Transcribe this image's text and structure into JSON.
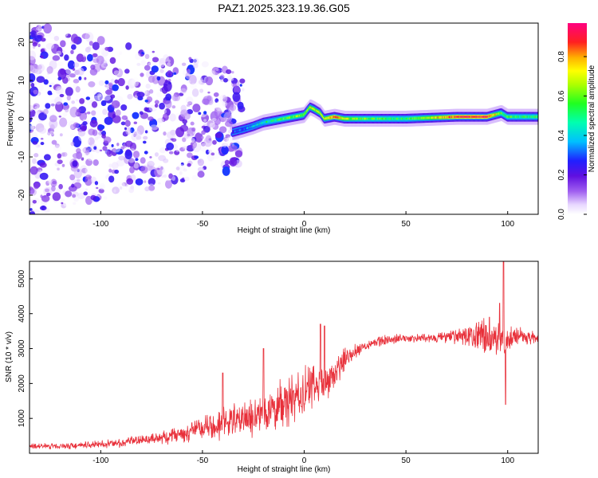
{
  "figure": {
    "title": "PAZ1.2025.323.19.36.G05"
  },
  "colorbar": {
    "label": "Normalized spectral amplitude",
    "ticks": [
      "0.0",
      "0.2",
      "0.4",
      "0.6",
      "0.8"
    ],
    "range": [
      0,
      0.97
    ]
  },
  "chart_data": [
    {
      "type": "heatmap",
      "title": "PAZ1.2025.323.19.36.G05",
      "xlabel": "Height of straight line (km)",
      "ylabel": "Frequency (Hz)",
      "xlim": [
        -135,
        115
      ],
      "ylim": [
        -25,
        25
      ],
      "x_ticks": [
        -100,
        -50,
        0,
        50,
        100
      ],
      "y_ticks": [
        20,
        10,
        0,
        -10,
        -20
      ],
      "x_tick_labels": [
        "-100",
        "-50",
        "0",
        "50",
        "100"
      ],
      "y_tick_labels": [
        "20",
        "10",
        "0",
        "-10",
        "-20"
      ],
      "colorscale": "rainbow (white-violet-blue-cyan-green-yellow-red-pink)",
      "ridge": {
        "description": "Narrow band near 0 Hz for heights above about -30 km; diffuse scattered energy below",
        "x": [
          -35,
          -30,
          -25,
          -20,
          -10,
          0,
          3,
          5,
          8,
          10,
          15,
          20,
          30,
          50,
          75,
          90,
          97,
          100,
          115
        ],
        "frequency": [
          -3.5,
          -2.8,
          -2,
          -1,
          0,
          1,
          3,
          2.5,
          1.5,
          0,
          0.5,
          0,
          0,
          0,
          0.5,
          0.5,
          1.5,
          0.5,
          0.5
        ],
        "amplitude": [
          0.3,
          0.35,
          0.4,
          0.45,
          0.6,
          0.65,
          0.7,
          0.7,
          0.75,
          0.7,
          0.9,
          0.7,
          0.6,
          0.55,
          0.9,
          0.95,
          0.6,
          0.55,
          0.55
        ]
      },
      "scatter_region": {
        "x_range": [
          -135,
          -30
        ],
        "frequency_range": [
          -25,
          25
        ],
        "amplitude_range": [
          0.0,
          0.3
        ],
        "note": "blob densities decrease with height"
      }
    },
    {
      "type": "line",
      "xlabel": "Height of straight line (km)",
      "ylabel": "SNR (10 * v/v)",
      "xlim": [
        -135,
        115
      ],
      "ylim": [
        0,
        5500
      ],
      "x_ticks": [
        -100,
        -50,
        0,
        50,
        100
      ],
      "y_ticks": [
        1000,
        2000,
        3000,
        4000,
        5000
      ],
      "x_tick_labels": [
        "-100",
        "-50",
        "0",
        "50",
        "100"
      ],
      "y_tick_labels": [
        "1000",
        "2000",
        "3000",
        "4000",
        "5000"
      ],
      "color": "#e8303a",
      "baseline_x": [
        -135,
        -110,
        -90,
        -70,
        -55,
        -40,
        -25,
        -15,
        0,
        5,
        10,
        15,
        20,
        30,
        40,
        50,
        60,
        70,
        80,
        90,
        95,
        100,
        105,
        115
      ],
      "baseline_y": [
        200,
        220,
        300,
        450,
        650,
        850,
        1050,
        1300,
        1700,
        1900,
        2050,
        2200,
        2750,
        3100,
        3250,
        3300,
        3300,
        3320,
        3350,
        3350,
        3250,
        3300,
        3350,
        3300
      ],
      "noise_x": [
        -135,
        -100,
        -80,
        -60,
        -40,
        -20,
        0,
        20,
        30,
        60,
        80,
        90,
        100,
        115
      ],
      "noise_amp": [
        80,
        100,
        140,
        250,
        450,
        600,
        800,
        300,
        150,
        120,
        250,
        650,
        400,
        120
      ],
      "spikes": [
        {
          "x": -20,
          "y": 3000
        },
        {
          "x": -40,
          "y": 2300
        },
        {
          "x": 8,
          "y": 3700
        },
        {
          "x": 10,
          "y": 3650
        },
        {
          "x": 91,
          "y": 3900
        },
        {
          "x": 98,
          "y": 5500
        },
        {
          "x": 99,
          "y": 1400
        },
        {
          "x": 96,
          "y": 4300
        }
      ]
    }
  ]
}
